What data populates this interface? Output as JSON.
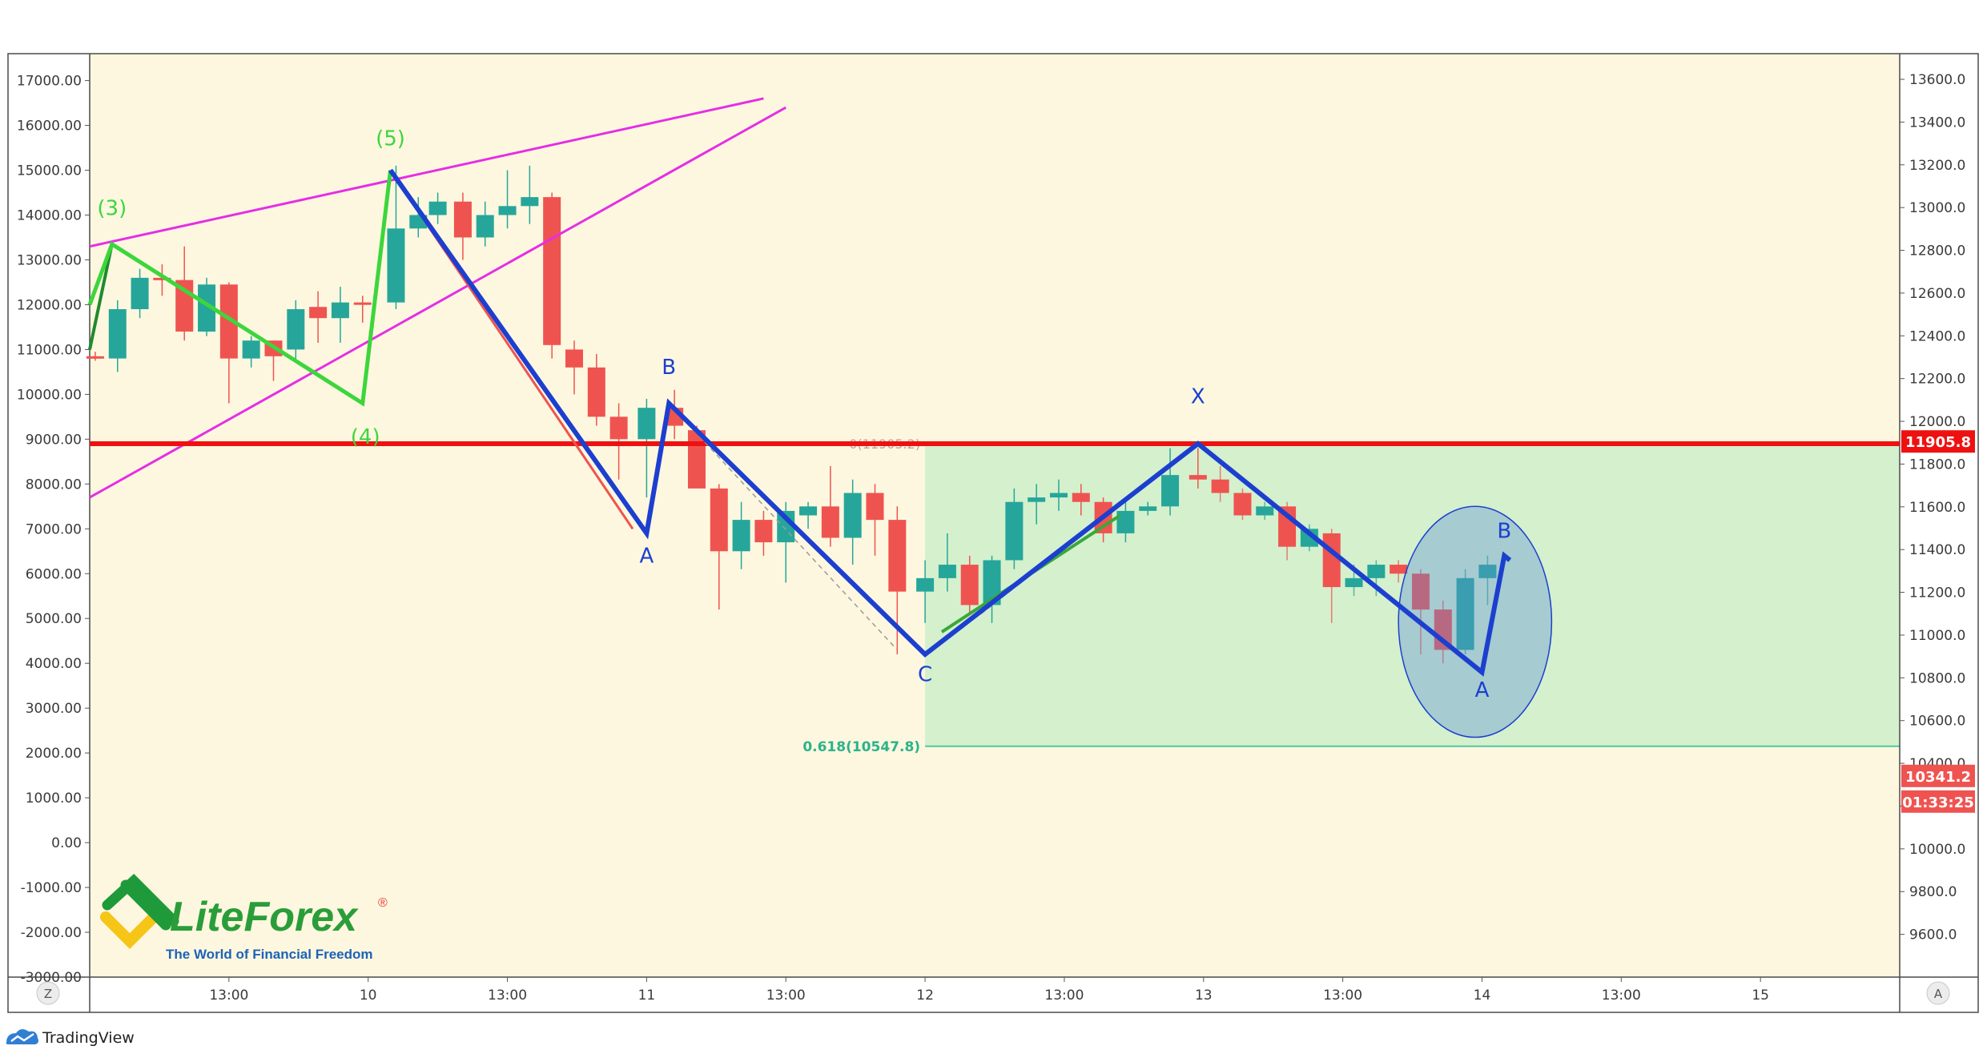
{
  "chart_data": {
    "type": "candlestick",
    "left_axis": {
      "ticks": [
        17000,
        16000,
        15000,
        14000,
        13000,
        12000,
        11000,
        10000,
        9000,
        8000,
        7000,
        6000,
        5000,
        4000,
        3000,
        2000,
        1000,
        0,
        -1000,
        -2000,
        -3000
      ],
      "range": [
        -3000,
        17600
      ]
    },
    "right_axis": {
      "ticks": [
        13600,
        13400,
        13200,
        13000,
        12800,
        12600,
        12400,
        12200,
        12000,
        11800,
        11600,
        11400,
        11200,
        11000,
        10800,
        10600,
        10400,
        10200,
        10000,
        9800,
        9600
      ],
      "range": [
        9400,
        13720
      ],
      "last_price": "10341.2",
      "countdown": "01:33:25",
      "level_price": "11905.8"
    },
    "x_axis": {
      "ticks": [
        "13:00",
        "10",
        "13:00",
        "11",
        "13:00",
        "12",
        "13:00",
        "13",
        "13:00",
        "14",
        "13:00",
        "15"
      ],
      "day_span": [
        9.0,
        15.5
      ]
    },
    "candles": [
      {
        "t": 9.02,
        "o": 10850,
        "h": 10950,
        "l": 10750,
        "c": 10800
      },
      {
        "t": 9.1,
        "o": 10800,
        "h": 12100,
        "l": 10500,
        "c": 11900
      },
      {
        "t": 9.18,
        "o": 11900,
        "h": 12800,
        "l": 11700,
        "c": 12600
      },
      {
        "t": 9.26,
        "o": 12600,
        "h": 12900,
        "l": 12200,
        "c": 12550
      },
      {
        "t": 9.34,
        "o": 12550,
        "h": 13300,
        "l": 11200,
        "c": 11400
      },
      {
        "t": 9.42,
        "o": 11400,
        "h": 12600,
        "l": 11300,
        "c": 12450
      },
      {
        "t": 9.5,
        "o": 12450,
        "h": 12500,
        "l": 9800,
        "c": 10800
      },
      {
        "t": 9.58,
        "o": 10800,
        "h": 11300,
        "l": 10600,
        "c": 11200
      },
      {
        "t": 9.66,
        "o": 11200,
        "h": 11200,
        "l": 10300,
        "c": 10850
      },
      {
        "t": 9.74,
        "o": 11000,
        "h": 12100,
        "l": 10700,
        "c": 11900
      },
      {
        "t": 9.82,
        "o": 11950,
        "h": 12300,
        "l": 11150,
        "c": 11700
      },
      {
        "t": 9.9,
        "o": 11700,
        "h": 12400,
        "l": 11150,
        "c": 12050
      },
      {
        "t": 9.98,
        "o": 12050,
        "h": 12200,
        "l": 11600,
        "c": 12000
      },
      {
        "t": 10.1,
        "o": 12050,
        "h": 15100,
        "l": 11900,
        "c": 13700
      },
      {
        "t": 10.18,
        "o": 13700,
        "h": 14400,
        "l": 13500,
        "c": 14000
      },
      {
        "t": 10.25,
        "o": 14000,
        "h": 14500,
        "l": 13800,
        "c": 14300
      },
      {
        "t": 10.34,
        "o": 14300,
        "h": 14500,
        "l": 13000,
        "c": 13500
      },
      {
        "t": 10.42,
        "o": 13500,
        "h": 14300,
        "l": 13300,
        "c": 14000
      },
      {
        "t": 10.5,
        "o": 14000,
        "h": 15000,
        "l": 13700,
        "c": 14200
      },
      {
        "t": 10.58,
        "o": 14200,
        "h": 15100,
        "l": 13800,
        "c": 14400
      },
      {
        "t": 10.66,
        "o": 14400,
        "h": 14500,
        "l": 10800,
        "c": 11100
      },
      {
        "t": 10.74,
        "o": 11000,
        "h": 11200,
        "l": 10000,
        "c": 10600
      },
      {
        "t": 10.82,
        "o": 10600,
        "h": 10900,
        "l": 9300,
        "c": 9500
      },
      {
        "t": 10.9,
        "o": 9500,
        "h": 9800,
        "l": 8100,
        "c": 9000
      },
      {
        "t": 11.0,
        "o": 9000,
        "h": 9900,
        "l": 7700,
        "c": 9700
      },
      {
        "t": 11.1,
        "o": 9700,
        "h": 10100,
        "l": 9000,
        "c": 9300
      },
      {
        "t": 11.18,
        "o": 9200,
        "h": 9300,
        "l": 8000,
        "c": 7900
      },
      {
        "t": 11.26,
        "o": 7900,
        "h": 8000,
        "l": 5200,
        "c": 6500
      },
      {
        "t": 11.34,
        "o": 6500,
        "h": 7600,
        "l": 6100,
        "c": 7200
      },
      {
        "t": 11.42,
        "o": 7200,
        "h": 7400,
        "l": 6400,
        "c": 6700
      },
      {
        "t": 11.5,
        "o": 6700,
        "h": 7600,
        "l": 5800,
        "c": 7400
      },
      {
        "t": 11.58,
        "o": 7300,
        "h": 7600,
        "l": 7000,
        "c": 7500
      },
      {
        "t": 11.66,
        "o": 7500,
        "h": 8400,
        "l": 6600,
        "c": 6800
      },
      {
        "t": 11.74,
        "o": 6800,
        "h": 8100,
        "l": 6200,
        "c": 7800
      },
      {
        "t": 11.82,
        "o": 7800,
        "h": 8000,
        "l": 6400,
        "c": 7200
      },
      {
        "t": 11.9,
        "o": 7200,
        "h": 7500,
        "l": 4200,
        "c": 5600
      },
      {
        "t": 12.0,
        "o": 5600,
        "h": 6300,
        "l": 4900,
        "c": 5900
      },
      {
        "t": 12.08,
        "o": 5900,
        "h": 6900,
        "l": 5600,
        "c": 6200
      },
      {
        "t": 12.16,
        "o": 6200,
        "h": 6400,
        "l": 5100,
        "c": 5300
      },
      {
        "t": 12.24,
        "o": 5300,
        "h": 6400,
        "l": 4900,
        "c": 6300
      },
      {
        "t": 12.32,
        "o": 6300,
        "h": 7900,
        "l": 6100,
        "c": 7600
      },
      {
        "t": 12.4,
        "o": 7600,
        "h": 8000,
        "l": 7100,
        "c": 7700
      },
      {
        "t": 12.48,
        "o": 7700,
        "h": 8100,
        "l": 7400,
        "c": 7800
      },
      {
        "t": 12.56,
        "o": 7800,
        "h": 8000,
        "l": 7300,
        "c": 7600
      },
      {
        "t": 12.64,
        "o": 7600,
        "h": 7700,
        "l": 6700,
        "c": 6900
      },
      {
        "t": 12.72,
        "o": 6900,
        "h": 7600,
        "l": 6700,
        "c": 7400
      },
      {
        "t": 12.8,
        "o": 7400,
        "h": 7600,
        "l": 7300,
        "c": 7500
      },
      {
        "t": 12.88,
        "o": 7500,
        "h": 8800,
        "l": 7300,
        "c": 8200
      },
      {
        "t": 12.98,
        "o": 8200,
        "h": 8800,
        "l": 7900,
        "c": 8100
      },
      {
        "t": 13.06,
        "o": 8100,
        "h": 8400,
        "l": 7600,
        "c": 7800
      },
      {
        "t": 13.14,
        "o": 7800,
        "h": 7900,
        "l": 7200,
        "c": 7300
      },
      {
        "t": 13.22,
        "o": 7300,
        "h": 7600,
        "l": 7200,
        "c": 7500
      },
      {
        "t": 13.3,
        "o": 7500,
        "h": 7600,
        "l": 6300,
        "c": 6600
      },
      {
        "t": 13.38,
        "o": 6600,
        "h": 7100,
        "l": 6500,
        "c": 7000
      },
      {
        "t": 13.46,
        "o": 6900,
        "h": 7000,
        "l": 4900,
        "c": 5700
      },
      {
        "t": 13.54,
        "o": 5700,
        "h": 6200,
        "l": 5500,
        "c": 5900
      },
      {
        "t": 13.62,
        "o": 5900,
        "h": 6300,
        "l": 5500,
        "c": 6200
      },
      {
        "t": 13.7,
        "o": 6200,
        "h": 6300,
        "l": 5800,
        "c": 6000
      },
      {
        "t": 13.78,
        "o": 6000,
        "h": 6100,
        "l": 4200,
        "c": 5200
      },
      {
        "t": 13.86,
        "o": 5200,
        "h": 5400,
        "l": 4000,
        "c": 4300
      },
      {
        "t": 13.94,
        "o": 4300,
        "h": 6100,
        "l": 4200,
        "c": 5900
      },
      {
        "t": 14.02,
        "o": 5900,
        "h": 6400,
        "l": 5300,
        "c": 6200
      }
    ],
    "horizontal_line": {
      "value": 8900
    },
    "fib_zone": {
      "from_t": 12.0,
      "top": 8900,
      "bottom": 2150,
      "top_label": "0(11905.2)",
      "bottom_label": "0.618(10547.8)"
    },
    "magenta_lines": [
      [
        [
          9.0,
          13300
        ],
        [
          11.42,
          16600
        ]
      ],
      [
        [
          9.0,
          7700
        ],
        [
          11.5,
          16400
        ]
      ]
    ],
    "green_wave": [
      [
        9.0,
        12000
      ],
      [
        9.08,
        13350
      ],
      [
        9.98,
        9800
      ],
      [
        10.08,
        15000
      ]
    ],
    "green_wave_left": [
      [
        9.0,
        11000
      ],
      [
        9.08,
        13350
      ]
    ],
    "blue_path": [
      [
        10.08,
        15000
      ],
      [
        11.0,
        6900
      ],
      [
        11.08,
        9800
      ],
      [
        12.0,
        4200
      ],
      [
        12.98,
        8900
      ],
      [
        14.0,
        3800
      ],
      [
        14.08,
        6400
      ],
      [
        14.1,
        6300
      ]
    ],
    "red_overlay": [
      [
        10.08,
        15000
      ],
      [
        10.95,
        7000
      ]
    ],
    "green_overlay": [
      [
        12.06,
        4700
      ],
      [
        12.7,
        7300
      ]
    ],
    "dashed_segments": [
      [
        [
          10.08,
          15000
        ],
        [
          10.95,
          7000
        ]
      ],
      [
        [
          11.08,
          9800
        ],
        [
          11.9,
          4300
        ]
      ],
      [
        [
          12.2,
          5100
        ],
        [
          12.98,
          8900
        ]
      ]
    ],
    "ellipse": {
      "t_from": 13.7,
      "t_to": 14.25,
      "v_from": 2350,
      "v_to": 7500
    },
    "labels": [
      {
        "text": "(3)",
        "t": 9.08,
        "v": 14000,
        "color": "#3cd63c"
      },
      {
        "text": "(5)",
        "t": 10.08,
        "v": 15550,
        "color": "#3cd63c"
      },
      {
        "text": "(4)",
        "t": 9.99,
        "v": 8900,
        "color": "#3cd63c"
      },
      {
        "text": "A",
        "t": 11.0,
        "v": 6250,
        "color": "#1c3fcf"
      },
      {
        "text": "B",
        "t": 11.08,
        "v": 10450,
        "color": "#1c3fcf"
      },
      {
        "text": "C",
        "t": 12.0,
        "v": 3600,
        "color": "#1c3fcf"
      },
      {
        "text": "X",
        "t": 12.98,
        "v": 9800,
        "color": "#1c3fcf"
      },
      {
        "text": "A",
        "t": 14.0,
        "v": 3250,
        "color": "#1c3fcf"
      },
      {
        "text": "B",
        "t": 14.08,
        "v": 6800,
        "color": "#1c3fcf"
      }
    ]
  },
  "colors": {
    "background": "#fdf7df",
    "up": "#26a69a",
    "down": "#ef5350",
    "level_line": "#ee1111",
    "fib_zone": "#cdeeca",
    "magenta": "#e52ee5",
    "blue": "#1c3fcf",
    "green": "#3cd63c"
  },
  "logo": {
    "name": "LiteForex",
    "registered": "®",
    "tagline": "The World of Financial Freedom"
  },
  "scale_buttons": {
    "left": "Z",
    "right": "A"
  },
  "footer": {
    "brand": "TradingView"
  }
}
